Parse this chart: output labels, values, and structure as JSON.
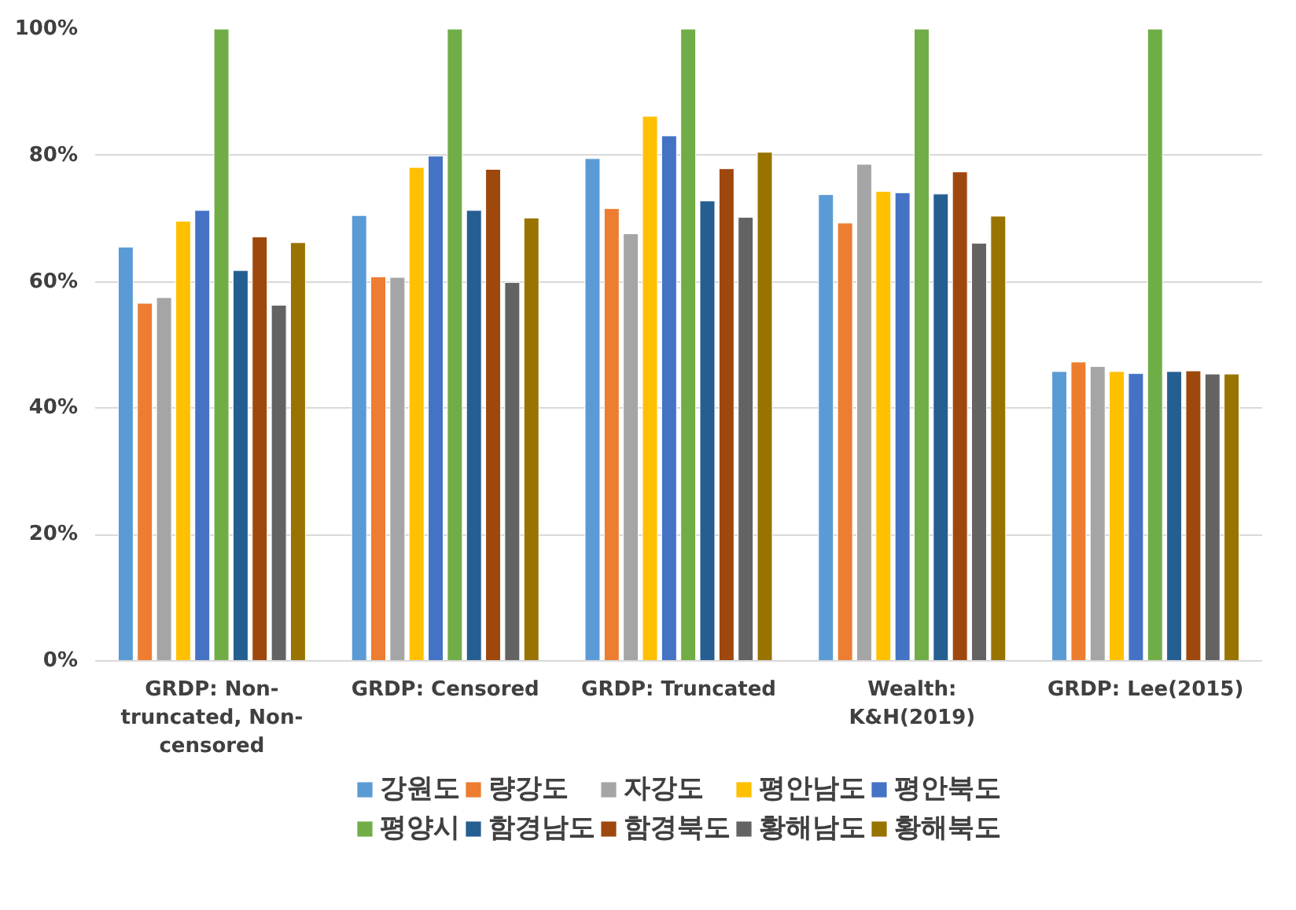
{
  "chart_data": {
    "type": "bar",
    "categories": [
      "GRDP: Non-truncated, Non-censored",
      "GRDP: Censored",
      "GRDP: Truncated",
      "Wealth: K&H(2019)",
      "GRDP: Lee(2015)"
    ],
    "ylim": [
      0,
      100
    ],
    "yticks": [
      {
        "value": 0,
        "label": "0%"
      },
      {
        "value": 20,
        "label": "20%"
      },
      {
        "value": 40,
        "label": "40%"
      },
      {
        "value": 60,
        "label": "60%"
      },
      {
        "value": 80,
        "label": "80%"
      },
      {
        "value": 100,
        "label": "100%"
      }
    ],
    "grid": "y",
    "legend": "bottom",
    "series": [
      {
        "name": "강원도",
        "color": "#5b9bd5",
        "values": [
          65.5,
          70.5,
          79.5,
          73.8,
          45.8
        ]
      },
      {
        "name": "량강도",
        "color": "#ed7d31",
        "values": [
          56.6,
          60.8,
          71.6,
          69.3,
          47.3
        ]
      },
      {
        "name": "자강도",
        "color": "#a5a5a5",
        "values": [
          57.5,
          60.7,
          67.6,
          78.6,
          46.6
        ]
      },
      {
        "name": "평안남도",
        "color": "#ffc000",
        "values": [
          69.6,
          78.1,
          86.2,
          74.3,
          45.8
        ]
      },
      {
        "name": "평안북도",
        "color": "#4472c4",
        "values": [
          71.3,
          79.9,
          83.1,
          74.1,
          45.5
        ]
      },
      {
        "name": "평양시",
        "color": "#70ad47",
        "values": [
          100,
          100,
          100,
          100,
          100
        ]
      },
      {
        "name": "함경남도",
        "color": "#255e91",
        "values": [
          61.8,
          71.3,
          72.8,
          73.9,
          45.8
        ]
      },
      {
        "name": "함경북도",
        "color": "#9e480e",
        "values": [
          67.1,
          77.8,
          77.9,
          77.4,
          45.9
        ]
      },
      {
        "name": "황해남도",
        "color": "#636363",
        "values": [
          56.3,
          59.9,
          70.2,
          66.1,
          45.4
        ]
      },
      {
        "name": "황해북도",
        "color": "#997300",
        "values": [
          66.2,
          70.1,
          80.5,
          70.4,
          45.4
        ]
      }
    ]
  }
}
